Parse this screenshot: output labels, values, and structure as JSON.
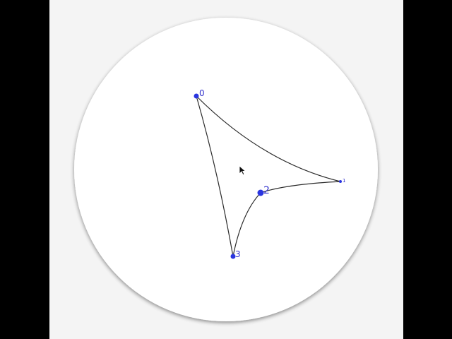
{
  "colors": {
    "letterbox": "#000000",
    "page_background": "#f4f4f4",
    "disk_fill": "#ffffff",
    "disk_shadow": "#bdbdbd",
    "edge_stroke": "#2a2a2a",
    "vertex_fill": "#2a35e0",
    "label_color": "#3333cc"
  },
  "diagram": {
    "type": "hyperbolic polygon in Poincare disk",
    "vertices": [
      {
        "label": "0"
      },
      {
        "label": "1"
      },
      {
        "label": "2"
      },
      {
        "label": "3"
      }
    ],
    "edges": [
      [
        "0",
        "1"
      ],
      [
        "1",
        "2"
      ],
      [
        "2",
        "3"
      ],
      [
        "3",
        "0"
      ]
    ]
  },
  "cursor": {
    "icon": "mouse-pointer-icon"
  }
}
